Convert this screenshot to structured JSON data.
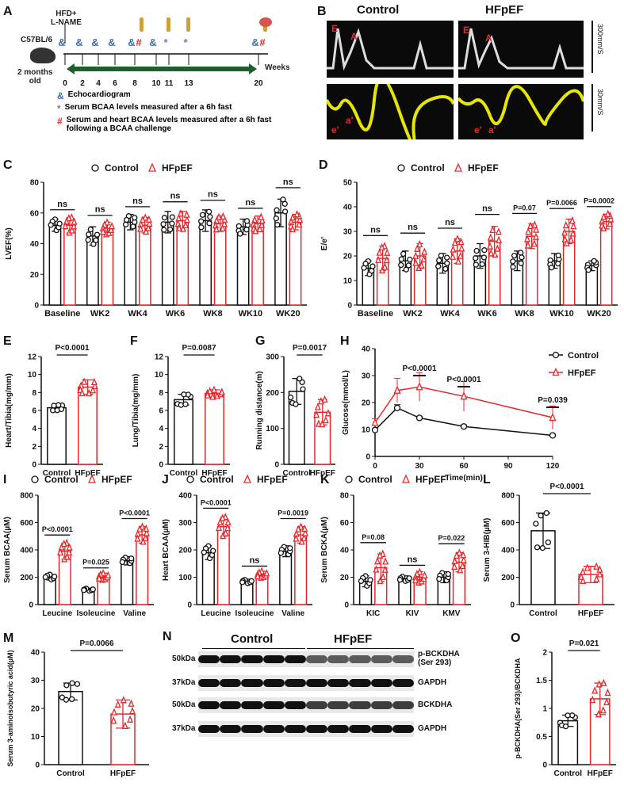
{
  "colors": {
    "control": "#111111",
    "hfpef": "#e8262a",
    "echo": "#3a6fb5",
    "serum_bcaa": "#8a6bc2",
    "challenge": "#e8262a",
    "arrow": "#1f5e2e"
  },
  "panel_a": {
    "letter": "A",
    "treatment": "HFD+\nL-NAME",
    "strain": "C57BL/6",
    "age": "2 months\nold",
    "weeks_label": "Weeks",
    "timepoints": [
      "0",
      "2",
      "4",
      "6",
      "8",
      "10",
      "11",
      "13",
      "20"
    ],
    "markers": [
      {
        "week": "0",
        "symbols": [
          "&"
        ]
      },
      {
        "week": "2",
        "symbols": [
          "&"
        ]
      },
      {
        "week": "4",
        "symbols": [
          "&"
        ]
      },
      {
        "week": "6",
        "symbols": [
          "&"
        ]
      },
      {
        "week": "8",
        "symbols": [
          "&",
          "#"
        ]
      },
      {
        "week": "10",
        "symbols": [
          "&"
        ]
      },
      {
        "week": "11",
        "symbols": [
          "*"
        ]
      },
      {
        "week": "13",
        "symbols": [
          "*"
        ]
      },
      {
        "week": "20",
        "symbols": [
          "&",
          "#"
        ]
      }
    ],
    "legend": [
      {
        "symbol": "&",
        "text": "Echocardiogram"
      },
      {
        "symbol": "*",
        "text": "Serum BCAA levels measured after a 6h fast"
      },
      {
        "symbol": "#",
        "text": "Serum and heart BCAA levels measured after a 6h fast following a BCAA challenge"
      }
    ]
  },
  "panel_b": {
    "letter": "B",
    "titles": [
      "Control",
      "HFpEF"
    ],
    "scale_top": "300mm/S",
    "scale_bottom": "30mm/S",
    "labels_top": [
      "E",
      "A"
    ],
    "labels_bottom": [
      "e'",
      "a'"
    ]
  },
  "panel_n": {
    "letter": "N",
    "groups": [
      "Control",
      "HFpEF"
    ],
    "rows": [
      {
        "kda": "50kDa",
        "protein": "p-BCKDHA\n(Ser 293)"
      },
      {
        "kda": "37kDa",
        "protein": "GAPDH"
      },
      {
        "kda": "50kDa",
        "protein": "BCKDHA"
      },
      {
        "kda": "37kDa",
        "protein": "GAPDH"
      }
    ]
  },
  "chart_data": [
    {
      "id": "C",
      "letter": "C",
      "type": "bar",
      "mode": "grouped",
      "legend": [
        "Control",
        "HFpEF"
      ],
      "ylabel": "LVEF(%)",
      "ylim": [
        0,
        80
      ],
      "yticks": [
        0,
        20,
        40,
        60,
        80
      ],
      "categories": [
        "Baseline",
        "WK2",
        "WK4",
        "WK6",
        "WK8",
        "WK10",
        "WK20"
      ],
      "series": [
        {
          "name": "Control",
          "values": [
            52,
            45,
            54,
            54,
            55,
            51,
            60
          ],
          "errors": [
            4,
            6,
            5,
            7,
            7,
            5,
            9
          ]
        },
        {
          "name": "HFpEF",
          "values": [
            52,
            50,
            52,
            55,
            53,
            53,
            54
          ],
          "errors": [
            5,
            4,
            5,
            6,
            5,
            5,
            5
          ]
        }
      ],
      "annotations": [
        "ns",
        "ns",
        "ns",
        "ns",
        "ns",
        "ns",
        "ns"
      ]
    },
    {
      "id": "D",
      "letter": "D",
      "type": "bar",
      "mode": "grouped",
      "legend": [
        "Control",
        "HFpEF"
      ],
      "ylabel": "E/e'",
      "ylim": [
        0,
        50
      ],
      "yticks": [
        0,
        10,
        20,
        30,
        40,
        50
      ],
      "categories": [
        "Baseline",
        "WK2",
        "WK4",
        "WK6",
        "WK8",
        "WK10",
        "WK20"
      ],
      "series": [
        {
          "name": "Control",
          "values": [
            15,
            18,
            17,
            20,
            18,
            18,
            16
          ],
          "errors": [
            3,
            4,
            4,
            5,
            4,
            3,
            2
          ]
        },
        {
          "name": "HFpEF",
          "values": [
            19,
            20,
            22,
            26,
            28,
            30,
            34
          ],
          "errors": [
            5,
            5,
            5,
            6,
            5,
            5,
            3
          ]
        }
      ],
      "annotations": [
        "ns",
        "ns",
        "ns",
        "ns",
        "P=0.07",
        "P=0.0066",
        "P=0.0002"
      ]
    },
    {
      "id": "E",
      "letter": "E",
      "type": "bar",
      "mode": "simple",
      "ylabel": "Heart/Tibia(mg/mm)",
      "ylim": [
        0,
        12
      ],
      "yticks": [
        0,
        2,
        4,
        6,
        8,
        10,
        12
      ],
      "categories": [
        "Control",
        "HFpEF"
      ],
      "series": [
        {
          "values": [
            6.3,
            8.6
          ],
          "errors": [
            0.3,
            0.8
          ]
        }
      ],
      "annotations": [
        "P<0.0001"
      ]
    },
    {
      "id": "F",
      "letter": "F",
      "type": "bar",
      "mode": "simple",
      "ylabel": "Lung/Tibia(mg/mm)",
      "ylim": [
        0,
        12
      ],
      "yticks": [
        0,
        2,
        4,
        6,
        8,
        10,
        12
      ],
      "categories": [
        "Control",
        "HFpEF"
      ],
      "series": [
        {
          "values": [
            7.2,
            7.9
          ],
          "errors": [
            0.6,
            0.4
          ]
        }
      ],
      "annotations": [
        "P=0.0087"
      ]
    },
    {
      "id": "G",
      "letter": "G",
      "type": "bar",
      "mode": "simple",
      "ylabel": "Running distance(m)",
      "ylim": [
        0,
        300
      ],
      "yticks": [
        0,
        100,
        200,
        300
      ],
      "categories": [
        "Control",
        "HFpEF"
      ],
      "series": [
        {
          "values": [
            203,
            145
          ],
          "errors": [
            36,
            35
          ]
        }
      ],
      "annotations": [
        "P=0.0017"
      ]
    },
    {
      "id": "H",
      "letter": "H",
      "type": "line",
      "ylabel": "Glucose(mmol/L)",
      "xlabel": "Time(min)",
      "ylim": [
        0,
        40
      ],
      "yticks": [
        0,
        10,
        20,
        30,
        40
      ],
      "xlim": [
        0,
        120
      ],
      "xticks": [
        0,
        30,
        60,
        90,
        120
      ],
      "x": [
        0,
        15,
        30,
        60,
        120
      ],
      "series": [
        {
          "name": "Control",
          "values": [
            9.8,
            18,
            14.3,
            11.1,
            7.8
          ],
          "errors": [
            0.5,
            1.2,
            0.6,
            0.6,
            0.4
          ]
        },
        {
          "name": "HFpEF",
          "values": [
            12.5,
            24.5,
            25.8,
            22.3,
            14.4
          ],
          "errors": [
            1.5,
            4.5,
            5.3,
            5.5,
            4.3
          ]
        }
      ],
      "annotations": [
        {
          "x": 30,
          "text": "P<0.0001"
        },
        {
          "x": 60,
          "text": "P<0.0001"
        },
        {
          "x": 120,
          "text": "P=0.039"
        }
      ],
      "legend_position": "top-right"
    },
    {
      "id": "I",
      "letter": "I",
      "type": "bar",
      "mode": "grouped",
      "legend": [
        "Control",
        "HFpEF"
      ],
      "ylabel": "Serum BCAA(µM)",
      "ylim": [
        0,
        800
      ],
      "yticks": [
        0,
        200,
        400,
        600,
        800
      ],
      "categories": [
        "Leucine",
        "Isoleucine",
        "Valine"
      ],
      "series": [
        {
          "name": "Control",
          "values": [
            200,
            110,
            320
          ],
          "errors": [
            20,
            10,
            30
          ]
        },
        {
          "name": "HFpEF",
          "values": [
            390,
            205,
            510
          ],
          "errors": [
            60,
            25,
            60
          ]
        }
      ],
      "annotations": [
        "P<0.0001",
        "P=0.025",
        "P<0.0001"
      ]
    },
    {
      "id": "J",
      "letter": "J",
      "type": "bar",
      "mode": "grouped",
      "legend": [
        "Control",
        "HFpEF"
      ],
      "ylabel": "Heart BCAA(µM)",
      "ylim": [
        0,
        400
      ],
      "yticks": [
        0,
        100,
        200,
        300,
        400
      ],
      "categories": [
        "Leucine",
        "Isoleucine",
        "Valine"
      ],
      "series": [
        {
          "name": "Control",
          "values": [
            190,
            85,
            195
          ],
          "errors": [
            25,
            8,
            20
          ]
        },
        {
          "name": "HFpEF",
          "values": [
            285,
            110,
            255
          ],
          "errors": [
            35,
            12,
            30
          ]
        }
      ],
      "annotations": [
        "P<0.0001",
        "ns",
        "P=0.0019"
      ]
    },
    {
      "id": "K",
      "letter": "K",
      "type": "bar",
      "mode": "grouped",
      "legend": [
        "Control",
        "HFpEF"
      ],
      "ylabel": "Serum BCKA(µM)",
      "ylim": [
        0,
        80
      ],
      "yticks": [
        0,
        20,
        40,
        60,
        80
      ],
      "categories": [
        "KIC",
        "KIV",
        "KMV"
      ],
      "series": [
        {
          "name": "Control",
          "values": [
            17,
            19,
            20
          ],
          "errors": [
            4,
            2,
            4
          ]
        },
        {
          "name": "HFpEF",
          "values": [
            27,
            20,
            31
          ],
          "errors": [
            10,
            4,
            7
          ]
        }
      ],
      "annotations": [
        "P=0.08",
        "ns",
        "P=0.022"
      ]
    },
    {
      "id": "L",
      "letter": "L",
      "type": "bar",
      "mode": "simple",
      "ylabel": "Serum 3-HIB(µM)",
      "ylim": [
        0,
        800
      ],
      "yticks": [
        0,
        200,
        400,
        600,
        800
      ],
      "categories": [
        "Control",
        "HFpEF"
      ],
      "series": [
        {
          "values": [
            540,
            220
          ],
          "errors": [
            130,
            60
          ]
        }
      ],
      "annotations": [
        "P<0.0001"
      ]
    },
    {
      "id": "M",
      "letter": "M",
      "type": "bar",
      "mode": "simple",
      "ylabel": "Serum 3-aminoisobutyric acid(µM)",
      "ylim": [
        0,
        40
      ],
      "yticks": [
        0,
        10,
        20,
        30,
        40
      ],
      "categories": [
        "Control",
        "HFpEF"
      ],
      "series": [
        {
          "values": [
            26,
            18
          ],
          "errors": [
            3,
            5
          ]
        }
      ],
      "annotations": [
        "P=0.0066"
      ]
    },
    {
      "id": "O",
      "letter": "O",
      "type": "bar",
      "mode": "simple",
      "ylabel": "p-BCKDHA(Ser 293)/BCKDHA",
      "ylim": [
        0,
        2.0
      ],
      "yticks": [
        0,
        0.5,
        1.0,
        1.5,
        2.0
      ],
      "categories": [
        "Control",
        "HFpEF"
      ],
      "series": [
        {
          "values": [
            0.78,
            1.17
          ],
          "errors": [
            0.1,
            0.28
          ]
        }
      ],
      "annotations": [
        "P=0.021"
      ]
    }
  ]
}
